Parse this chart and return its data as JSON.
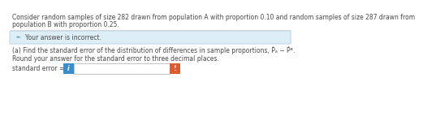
{
  "title_line1": "Consider random samples of size 282 drawn from population A with proportion 0.10 and random samples of size 287 drawn from",
  "title_line2": "population B with proportion 0.25.",
  "incorrect_text": "Your answer is incorrect.",
  "part_a_text": "(a) Find the standard error of the distribution of differences in sample proportions, Ṗₐ − Ṗᴮ.",
  "round_text": "Round your answer for the standard error to three decimal places.",
  "label_text": "standard error =",
  "blue_box_color": "#3b8ec9",
  "orange_box_color": "#e05a2b",
  "alert_bg_color": "#ddeef6",
  "alert_border_color": "#b3d3e8",
  "divider_color": "#d0d0d0",
  "page_bg": "#ffffff",
  "text_color": "#4a4a4a",
  "title_fontsize": 5.5,
  "body_fontsize": 5.5,
  "icon_fontsize": 5.0
}
